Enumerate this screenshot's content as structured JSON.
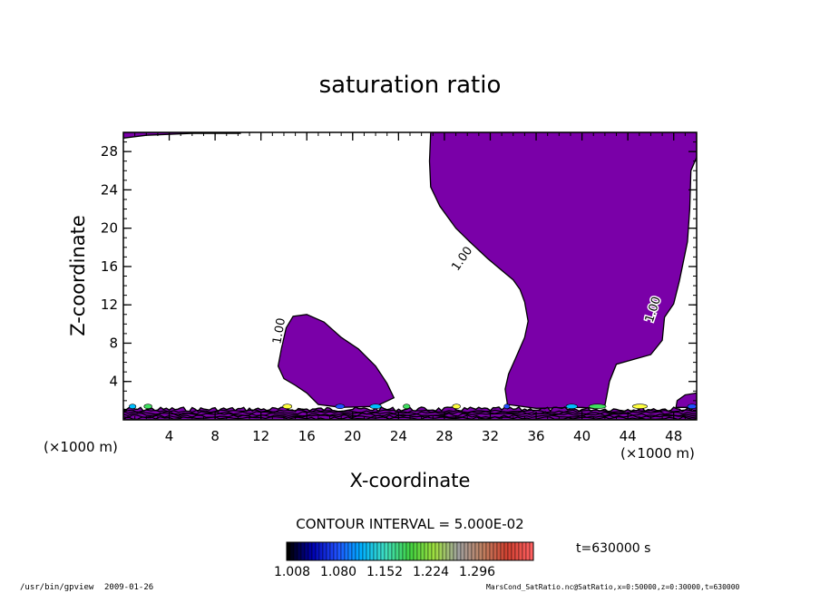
{
  "chart_data": {
    "type": "contour",
    "title": "saturation ratio",
    "xlabel": "X-coordinate",
    "ylabel": "Z-coordinate",
    "x_unit": "(×1000 m)",
    "y_unit": "(×1000 m)",
    "xlim": [
      0,
      50
    ],
    "ylim": [
      0,
      30
    ],
    "xticks": [
      4,
      8,
      12,
      16,
      20,
      24,
      28,
      32,
      36,
      40,
      44,
      48
    ],
    "yticks": [
      4,
      8,
      12,
      16,
      20,
      24,
      28
    ],
    "contour_interval_text": "CONTOUR INTERVAL = 5.000E-02",
    "time_text": "t=630000 s",
    "contour_labels": [
      "1.00",
      "1.00",
      "1.00"
    ],
    "fill_color": "#7a00a8",
    "colorbar": {
      "tick_labels": [
        "1.008",
        "1.080",
        "1.152",
        "1.224",
        "1.296"
      ],
      "min": 1.008,
      "max": 1.35,
      "colors": [
        "#000000",
        "#0000b0",
        "#2050ff",
        "#00b0ff",
        "#40e0c0",
        "#40d040",
        "#a0e040",
        "#a0a0a0",
        "#c08060",
        "#d04030",
        "#ff6060"
      ]
    },
    "regions": [
      {
        "name": "top-left strip",
        "outline": [
          [
            0,
            29.4
          ],
          [
            2,
            29.7
          ],
          [
            6,
            29.9
          ],
          [
            10.2,
            29.9
          ],
          [
            10.2,
            30
          ],
          [
            0,
            30
          ]
        ]
      },
      {
        "name": "left plume",
        "outline": [
          [
            13.5,
            5.6
          ],
          [
            13.8,
            7.5
          ],
          [
            14.2,
            9.6
          ],
          [
            14.8,
            10.8
          ],
          [
            16,
            11
          ],
          [
            17.5,
            10.2
          ],
          [
            19,
            8.6
          ],
          [
            20.5,
            7.4
          ],
          [
            22,
            5.6
          ],
          [
            23,
            3.8
          ],
          [
            23.6,
            2.3
          ],
          [
            22,
            1.4
          ],
          [
            19,
            1.3
          ],
          [
            17,
            1.6
          ],
          [
            16,
            2.8
          ],
          [
            15,
            3.6
          ],
          [
            14,
            4.3
          ]
        ]
      },
      {
        "name": "large plume",
        "outline": [
          [
            26.8,
            30
          ],
          [
            26.7,
            27
          ],
          [
            26.8,
            24.3
          ],
          [
            27.6,
            22.3
          ],
          [
            29,
            20
          ],
          [
            30.2,
            18.6
          ],
          [
            31.8,
            16.8
          ],
          [
            33.2,
            15.4
          ],
          [
            34,
            14.6
          ],
          [
            34.6,
            13.6
          ],
          [
            35,
            12.3
          ],
          [
            35.3,
            10.3
          ],
          [
            35,
            8.6
          ],
          [
            34.2,
            6.4
          ],
          [
            33.6,
            4.8
          ],
          [
            33.3,
            3.2
          ],
          [
            33.5,
            1.6
          ],
          [
            36,
            1.2
          ],
          [
            40,
            1.3
          ],
          [
            41,
            1.2
          ],
          [
            42,
            1.5
          ],
          [
            42.4,
            4
          ],
          [
            43,
            5.8
          ],
          [
            44.5,
            6.3
          ],
          [
            46,
            6.8
          ],
          [
            47,
            8.3
          ],
          [
            47.2,
            10.7
          ],
          [
            48,
            12.1
          ],
          [
            48.5,
            14.5
          ],
          [
            49.2,
            18.6
          ],
          [
            49.4,
            22
          ],
          [
            49.5,
            26
          ],
          [
            50,
            27.4
          ],
          [
            50,
            30
          ]
        ]
      },
      {
        "name": "right corner",
        "outline": [
          [
            50,
            2.8
          ],
          [
            49,
            2.6
          ],
          [
            48.3,
            2
          ],
          [
            48.2,
            1.3
          ],
          [
            50,
            1.3
          ]
        ]
      }
    ],
    "surface_speckles": [
      {
        "x": 0.5,
        "w": 0.6
      },
      {
        "x": 1.8,
        "w": 0.7
      },
      {
        "x": 13.9,
        "w": 0.8
      },
      {
        "x": 18.5,
        "w": 0.8
      },
      {
        "x": 21.5,
        "w": 1.0
      },
      {
        "x": 24.4,
        "w": 0.6
      },
      {
        "x": 28.7,
        "w": 0.7
      },
      {
        "x": 33.2,
        "w": 0.5
      },
      {
        "x": 38.6,
        "w": 1.0
      },
      {
        "x": 40.6,
        "w": 1.5
      },
      {
        "x": 44.4,
        "w": 1.3
      },
      {
        "x": 49.2,
        "w": 0.8
      }
    ]
  },
  "footer": {
    "program": "/usr/bin/gpview",
    "date": "2009-01-26",
    "source": "MarsCond_SatRatio.nc@SatRatio,x=0:50000,z=0:30000,t=630000"
  }
}
